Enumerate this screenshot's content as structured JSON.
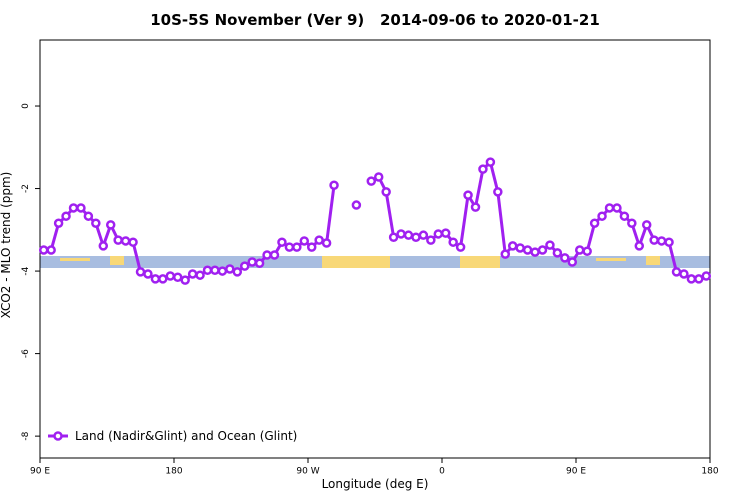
{
  "chart_data": {
    "type": "line",
    "title": "10S-5S November (Ver 9)   2014-09-06 to 2020-01-21",
    "x_label": "Longitude (deg E)",
    "y_label": "XCO2 - MLO trend (ppm)",
    "x": [
      92.5,
      97.5,
      102.5,
      107.5,
      112.5,
      117.5,
      122.5,
      127.5,
      132.5,
      137.5,
      142.5,
      147.5,
      152.5,
      157.5,
      162.5,
      167.5,
      172.5,
      177.5,
      182.5,
      187.5,
      192.5,
      197.5,
      202.5,
      207.5,
      212.5,
      217.5,
      222.5,
      227.5,
      232.5,
      237.5,
      242.5,
      247.5,
      252.5,
      257.5,
      262.5,
      267.5,
      272.5,
      277.5,
      282.5,
      287.5,
      292.5,
      297.5,
      302.5,
      307.5,
      312.5,
      317.5,
      322.5,
      327.5,
      332.5,
      337.5,
      342.5,
      347.5,
      352.5,
      357.5,
      362.5,
      367.5,
      372.5,
      377.5,
      382.5,
      387.5,
      392.5,
      397.5,
      402.5,
      407.5,
      412.5,
      417.5,
      422.5,
      427.5,
      432.5,
      437.5,
      442.5,
      447.5,
      452.5,
      457.5,
      462.5,
      467.5,
      472.5,
      477.5,
      482.5,
      487.5,
      492.5,
      497.5,
      502.5,
      507.5,
      512.5,
      517.5,
      522.5,
      527.5,
      532.5,
      537.5
    ],
    "series": [
      {
        "name": "Land (Nadir&Glint) and Ocean (Glint)",
        "color": "#a020f0",
        "values": [
          -3.49,
          -3.49,
          -2.84,
          -2.67,
          -2.47,
          -2.47,
          -2.67,
          -2.84,
          -3.39,
          -2.88,
          -3.25,
          -3.27,
          -3.3,
          -4.02,
          -4.07,
          -4.19,
          -4.19,
          -4.12,
          -4.15,
          -4.22,
          -4.07,
          -4.1,
          -3.98,
          -3.98,
          -4.0,
          -3.95,
          -4.02,
          -3.88,
          -3.78,
          -3.81,
          -3.61,
          -3.61,
          -3.3,
          -3.42,
          -3.42,
          -3.27,
          -3.42,
          -3.25,
          -3.32,
          -1.92,
          null,
          null,
          -2.4,
          null,
          -1.82,
          -1.72,
          -2.08,
          -3.18,
          -3.1,
          -3.13,
          -3.18,
          -3.13,
          -3.25,
          -3.1,
          -3.08,
          -3.3,
          -3.42,
          -2.16,
          -2.45,
          -1.53,
          -1.36,
          -2.08,
          -3.59,
          -3.39,
          -3.44,
          -3.49,
          -3.54,
          -3.49,
          -3.37,
          -3.56,
          -3.68,
          -3.78,
          -3.49,
          -3.52,
          -2.84,
          -2.67,
          -2.47,
          -2.47,
          -2.67,
          -2.84,
          -3.39,
          -2.88,
          -3.25,
          -3.27,
          -3.3,
          -4.02,
          -4.07,
          -4.19,
          -4.19,
          -4.12
        ]
      }
    ],
    "xlim": [
      90,
      540
    ],
    "xticks": [
      {
        "value": 90,
        "label": "90 E"
      },
      180,
      {
        "value": 270,
        "label": "90 W"
      },
      {
        "value": 360,
        "label": "0"
      },
      {
        "value": 450,
        "label": "90 E"
      },
      {
        "value": 540,
        "label": "180"
      }
    ],
    "ylim": [
      -8.53,
      1.6
    ],
    "yticks": [
      0,
      -2,
      -4,
      -6,
      -8
    ],
    "legend": "bottom-left"
  }
}
